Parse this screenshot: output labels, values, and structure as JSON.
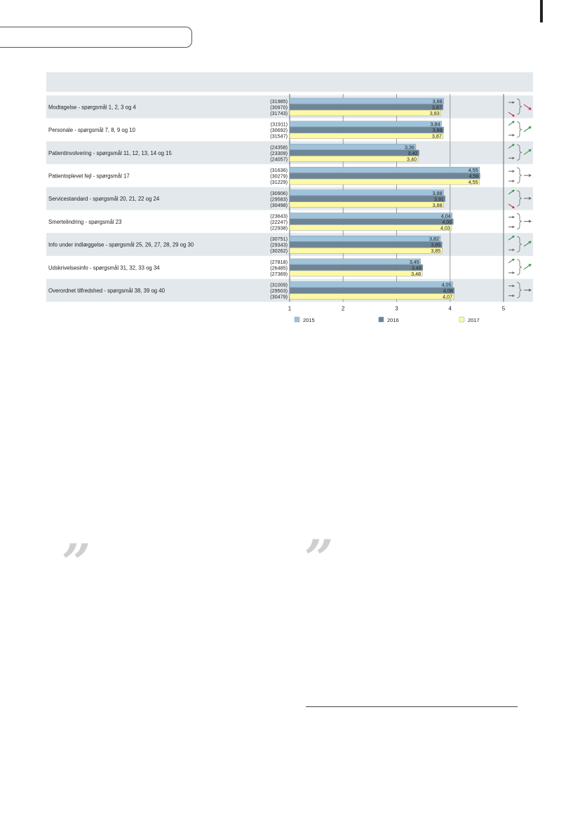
{
  "chart_data": {
    "type": "bar",
    "orientation": "horizontal",
    "categories": [
      "Modtagelse - spørgsmål 1, 2, 3 og 4",
      "Personale - spørgsmål 7, 8, 9 og 10",
      "Patientinvolvering - spørgsmål 11, 12, 13, 14 og 15",
      "Patientoplevet fejl - spørgsmål 17",
      "Servicestandard - spørgsmål 20, 21, 22 og 24",
      "Smertelindring - spørgsmål 23",
      "Info under indlæggelse - spørgsmål 25, 26, 27, 28, 29 og 30",
      "Udskrivelsesinfo - spørgsmål 31, 32, 33 og 34",
      "Overordnet tilfredshed - spørgsmål 38, 39 og 40"
    ],
    "series": [
      {
        "name": "2015",
        "color": "#9ec3db",
        "values": [
          3.88,
          3.84,
          3.36,
          4.55,
          3.88,
          4.04,
          3.82,
          3.45,
          4.05
        ],
        "labels": [
          "3,88",
          "3,84",
          "3,36",
          "4,55",
          "3,88",
          "4,04",
          "3,82",
          "3,45",
          "4,05"
        ],
        "n": [
          "(31985)",
          "(31911)",
          "(24358)",
          "(31636)",
          "(30906)",
          "(23643)",
          "(30751)",
          "(27818)",
          "(31009)"
        ]
      },
      {
        "name": "2016",
        "color": "#6d8597",
        "values": [
          3.87,
          3.88,
          3.42,
          4.56,
          3.91,
          4.06,
          3.85,
          3.49,
          4.08
        ],
        "labels": [
          "3,87",
          "3,88",
          "3,42",
          "4,56",
          "3,91",
          "4,06",
          "3,85",
          "3,49",
          "4,08"
        ],
        "n": [
          "(30970)",
          "(30692)",
          "(23309)",
          "(30279)",
          "(29583)",
          "(22247)",
          "(29343)",
          "(26485)",
          "(29503)"
        ]
      },
      {
        "name": "2017",
        "color": "#fff9a6",
        "values": [
          3.83,
          3.87,
          3.4,
          4.55,
          3.88,
          4.03,
          3.85,
          3.48,
          4.07
        ],
        "labels": [
          "3,83",
          "3,87",
          "3,40",
          "4,55",
          "3,88",
          "4,03",
          "3,85",
          "3,48",
          "4,07"
        ],
        "n": [
          "(31743)",
          "(31547)",
          "(24057)",
          "(31229)",
          "(30498)",
          "(22938)",
          "(30262)",
          "(27369)",
          "(30479)"
        ]
      }
    ],
    "trends": [
      {
        "top": "flat",
        "bottom": "down",
        "overall": "down"
      },
      {
        "top": "up",
        "bottom": "flat",
        "overall": "up"
      },
      {
        "top": "up",
        "bottom": "flat",
        "overall": "up"
      },
      {
        "top": "flat",
        "bottom": "flat",
        "overall": "flat"
      },
      {
        "top": "up",
        "bottom": "down",
        "overall": "flat"
      },
      {
        "top": "flat",
        "bottom": "flat",
        "overall": "flat"
      },
      {
        "top": "up",
        "bottom": "flat",
        "overall": "up"
      },
      {
        "top": "up",
        "bottom": "flat",
        "overall": "up"
      },
      {
        "top": "flat",
        "bottom": "flat",
        "overall": "flat"
      }
    ],
    "trend_colors": {
      "up": "#2e8b3e",
      "down": "#c41e4a",
      "flat": "#666666"
    },
    "xlim": [
      1,
      5
    ],
    "xticks": [
      "1",
      "2",
      "3",
      "4",
      "5"
    ],
    "grid": true,
    "legend_position": "bottom",
    "row_colors": [
      "#e3e8ec",
      "#ffffff"
    ]
  },
  "decor": {
    "quote_left": "”",
    "quote_right": "”"
  }
}
